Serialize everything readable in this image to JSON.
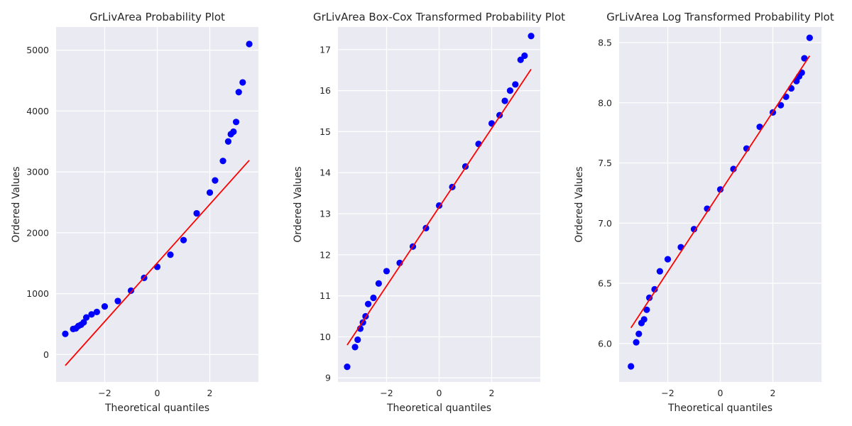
{
  "chart_data": [
    {
      "type": "scatter",
      "title": "GrLivArea Probability Plot",
      "xlabel": "Theoretical quantiles",
      "ylabel": "Ordered Values",
      "xlim": [
        -3.85,
        3.85
      ],
      "ylim": [
        -450,
        5380
      ],
      "xticks": [
        -2,
        0,
        2
      ],
      "xtick_labels": [
        "−2",
        "0",
        "2"
      ],
      "yticks": [
        0,
        1000,
        2000,
        3000,
        4000,
        5000
      ],
      "ytick_labels": [
        "0",
        "1000",
        "2000",
        "3000",
        "4000",
        "5000"
      ],
      "grid": true,
      "point_color": "#0000ff",
      "line_color": "#ff0000",
      "fit_line": {
        "x": [
          -3.5,
          3.5
        ],
        "y": [
          -180,
          3190
        ]
      },
      "points": {
        "x": [
          -3.5,
          -3.2,
          -3.1,
          -3.0,
          -2.9,
          -2.8,
          -2.7,
          -2.5,
          -2.3,
          -2.0,
          -1.5,
          -1.0,
          -0.5,
          0.0,
          0.5,
          1.0,
          1.5,
          2.0,
          2.2,
          2.5,
          2.7,
          2.8,
          2.9,
          3.0,
          3.1,
          3.25,
          3.5
        ],
        "y": [
          340,
          420,
          430,
          470,
          490,
          530,
          610,
          660,
          700,
          790,
          880,
          1050,
          1260,
          1440,
          1640,
          1880,
          2320,
          2660,
          2860,
          3180,
          3500,
          3620,
          3660,
          3820,
          4310,
          4470,
          5100
        ]
      }
    },
    {
      "type": "scatter",
      "title": "GrLivArea Box-Cox Transformed Probability Plot",
      "xlabel": "Theoretical quantiles",
      "ylabel": "Ordered Values",
      "xlim": [
        -3.85,
        3.85
      ],
      "ylim": [
        8.9,
        17.55
      ],
      "xticks": [
        -2,
        0,
        2
      ],
      "xtick_labels": [
        "−2",
        "0",
        "2"
      ],
      "yticks": [
        9,
        10,
        11,
        12,
        13,
        14,
        15,
        16,
        17
      ],
      "ytick_labels": [
        "9",
        "10",
        "11",
        "12",
        "13",
        "14",
        "15",
        "16",
        "17"
      ],
      "grid": true,
      "point_color": "#0000ff",
      "line_color": "#ff0000",
      "fit_line": {
        "x": [
          -3.5,
          3.5
        ],
        "y": [
          9.8,
          16.52
        ]
      },
      "points": {
        "x": [
          -3.5,
          -3.2,
          -3.1,
          -3.0,
          -2.9,
          -2.8,
          -2.7,
          -2.5,
          -2.3,
          -2.0,
          -1.5,
          -1.0,
          -0.5,
          0.0,
          0.5,
          1.0,
          1.5,
          2.0,
          2.3,
          2.5,
          2.7,
          2.9,
          3.1,
          3.25,
          3.5
        ],
        "y": [
          9.27,
          9.75,
          9.93,
          10.2,
          10.35,
          10.5,
          10.8,
          10.95,
          11.3,
          11.6,
          11.8,
          12.2,
          12.65,
          13.2,
          13.65,
          14.15,
          14.7,
          15.2,
          15.4,
          15.75,
          16.0,
          16.15,
          16.75,
          16.85,
          17.33
        ]
      }
    },
    {
      "type": "scatter",
      "title": "GrLivArea Log Transformed Probability Plot",
      "xlabel": "Theoretical quantiles",
      "ylabel": "Ordered Values",
      "xlim": [
        -3.85,
        3.85
      ],
      "ylim": [
        5.68,
        8.63
      ],
      "xticks": [
        -2,
        0,
        2
      ],
      "xtick_labels": [
        "−2",
        "0",
        "2"
      ],
      "yticks": [
        6.0,
        6.5,
        7.0,
        7.5,
        8.0,
        8.5
      ],
      "ytick_labels": [
        "6.0",
        "6.5",
        "7.0",
        "7.5",
        "8.0",
        "8.5"
      ],
      "grid": true,
      "point_color": "#0000ff",
      "line_color": "#ff0000",
      "fit_line": {
        "x": [
          -3.4,
          3.4
        ],
        "y": [
          6.13,
          8.39
        ]
      },
      "points": {
        "x": [
          -3.4,
          -3.2,
          -3.1,
          -3.0,
          -2.9,
          -2.8,
          -2.7,
          -2.5,
          -2.3,
          -2.0,
          -1.5,
          -1.0,
          -0.5,
          0.0,
          0.5,
          1.0,
          1.5,
          2.0,
          2.3,
          2.5,
          2.7,
          2.9,
          3.0,
          3.1,
          3.2,
          3.4
        ],
        "y": [
          5.81,
          6.01,
          6.08,
          6.17,
          6.2,
          6.28,
          6.38,
          6.45,
          6.6,
          6.7,
          6.8,
          6.95,
          7.12,
          7.28,
          7.45,
          7.62,
          7.8,
          7.92,
          7.98,
          8.05,
          8.12,
          8.18,
          8.22,
          8.25,
          8.37,
          8.54
        ]
      }
    }
  ]
}
